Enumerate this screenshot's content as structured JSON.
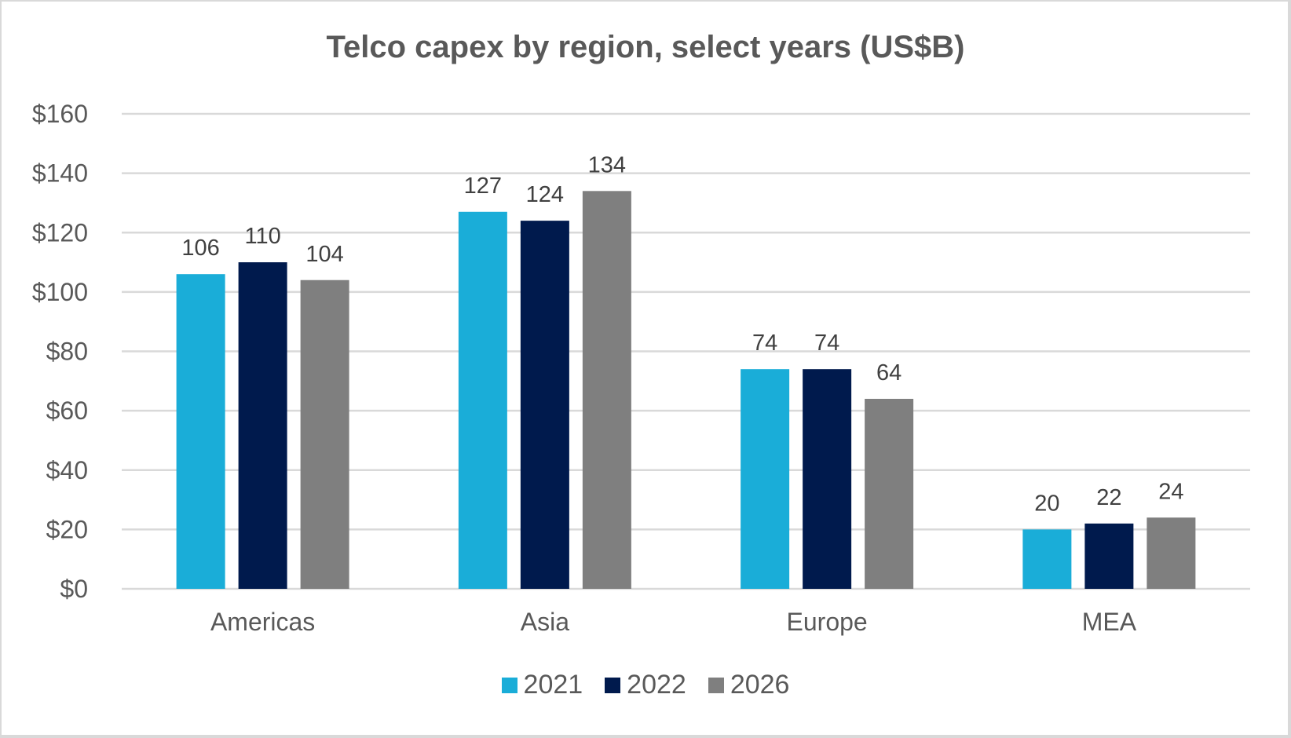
{
  "chart_data": {
    "type": "bar",
    "title": "Telco capex by region, select years (US$B)",
    "xlabel": "",
    "ylabel": "",
    "ylim": [
      0,
      160
    ],
    "yticks": [
      0,
      20,
      40,
      60,
      80,
      100,
      120,
      140,
      160
    ],
    "ytick_labels": [
      "$0",
      "$20",
      "$40",
      "$60",
      "$80",
      "$100",
      "$120",
      "$140",
      "$160"
    ],
    "grid": true,
    "legend_position": "bottom",
    "categories": [
      "Americas",
      "Asia",
      "Europe",
      "MEA"
    ],
    "series": [
      {
        "name": "2021",
        "color": "#1aadd8",
        "values": [
          106,
          127,
          74,
          20
        ]
      },
      {
        "name": "2022",
        "color": "#001a4d",
        "values": [
          110,
          124,
          74,
          22
        ]
      },
      {
        "name": "2026",
        "color": "#7f7f7f",
        "values": [
          104,
          134,
          64,
          24
        ]
      }
    ]
  }
}
